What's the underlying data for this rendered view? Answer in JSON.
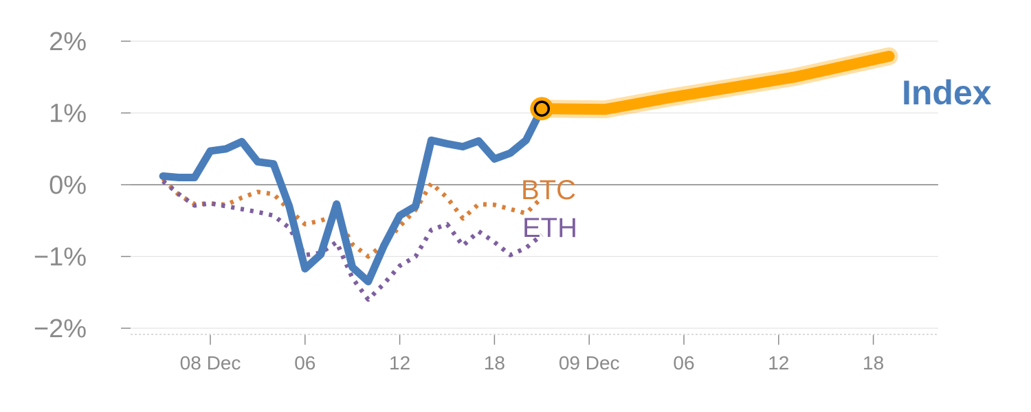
{
  "chart_data": {
    "type": "line",
    "y_unit": "%",
    "ylim": [
      -2,
      2
    ],
    "y_ticks": [
      {
        "value": 2,
        "label": "2%"
      },
      {
        "value": 1,
        "label": "1%"
      },
      {
        "value": 0,
        "label": "0%"
      },
      {
        "value": -1,
        "label": "−1%"
      },
      {
        "value": -2,
        "label": "−2%"
      }
    ],
    "x_tick_labels": [
      "08 Dec",
      "06",
      "12",
      "18",
      "09 Dec",
      "06",
      "12",
      "18"
    ],
    "grid": true,
    "series": [
      {
        "name": "Index",
        "color": "#4a7ebb",
        "style": "solid",
        "points": [
          [
            "12-07 21:00",
            0.12
          ],
          [
            "12-07 22:00",
            0.1
          ],
          [
            "12-07 23:00",
            0.1
          ],
          [
            "12-08 00:00",
            0.47
          ],
          [
            "12-08 01:00",
            0.5
          ],
          [
            "12-08 02:00",
            0.6
          ],
          [
            "12-08 03:00",
            0.32
          ],
          [
            "12-08 04:00",
            0.29
          ],
          [
            "12-08 05:00",
            -0.3
          ],
          [
            "12-08 06:00",
            -1.17
          ],
          [
            "12-08 07:00",
            -0.97
          ],
          [
            "12-08 08:00",
            -0.27
          ],
          [
            "12-08 09:00",
            -1.15
          ],
          [
            "12-08 10:00",
            -1.35
          ],
          [
            "12-08 11:00",
            -0.85
          ],
          [
            "12-08 12:00",
            -0.43
          ],
          [
            "12-08 13:00",
            -0.3
          ],
          [
            "12-08 14:00",
            0.62
          ],
          [
            "12-08 15:00",
            0.57
          ],
          [
            "12-08 16:00",
            0.53
          ],
          [
            "12-08 17:00",
            0.61
          ],
          [
            "12-08 18:00",
            0.36
          ],
          [
            "12-08 19:00",
            0.44
          ],
          [
            "12-08 20:00",
            0.62
          ],
          [
            "12-08 21:00",
            1.06
          ]
        ]
      },
      {
        "name": "BTC",
        "color": "#d9803a",
        "style": "dotted",
        "points": [
          [
            "12-07 21:00",
            0.08
          ],
          [
            "12-07 22:00",
            -0.14
          ],
          [
            "12-07 23:00",
            -0.27
          ],
          [
            "12-08 00:00",
            -0.26
          ],
          [
            "12-08 01:00",
            -0.28
          ],
          [
            "12-08 02:00",
            -0.18
          ],
          [
            "12-08 03:00",
            -0.1
          ],
          [
            "12-08 04:00",
            -0.13
          ],
          [
            "12-08 05:00",
            -0.35
          ],
          [
            "12-08 06:00",
            -0.55
          ],
          [
            "12-08 07:00",
            -0.5
          ],
          [
            "12-08 08:00",
            -0.42
          ],
          [
            "12-08 09:00",
            -0.83
          ],
          [
            "12-08 10:00",
            -1.0
          ],
          [
            "12-08 11:00",
            -0.83
          ],
          [
            "12-08 12:00",
            -0.58
          ],
          [
            "12-08 13:00",
            -0.35
          ],
          [
            "12-08 14:00",
            0.02
          ],
          [
            "12-08 15:00",
            -0.18
          ],
          [
            "12-08 16:00",
            -0.47
          ],
          [
            "12-08 17:00",
            -0.27
          ],
          [
            "12-08 18:00",
            -0.28
          ],
          [
            "12-08 19:00",
            -0.34
          ],
          [
            "12-08 20:00",
            -0.4
          ],
          [
            "12-08 21:00",
            -0.18
          ]
        ]
      },
      {
        "name": "ETH",
        "color": "#7d5fa0",
        "style": "dotted",
        "points": [
          [
            "12-07 21:00",
            0.05
          ],
          [
            "12-07 22:00",
            -0.13
          ],
          [
            "12-07 23:00",
            -0.29
          ],
          [
            "12-08 00:00",
            -0.26
          ],
          [
            "12-08 01:00",
            -0.3
          ],
          [
            "12-08 02:00",
            -0.34
          ],
          [
            "12-08 03:00",
            -0.38
          ],
          [
            "12-08 04:00",
            -0.43
          ],
          [
            "12-08 05:00",
            -0.6
          ],
          [
            "12-08 06:00",
            -0.98
          ],
          [
            "12-08 07:00",
            -0.95
          ],
          [
            "12-08 08:00",
            -0.8
          ],
          [
            "12-08 09:00",
            -1.3
          ],
          [
            "12-08 10:00",
            -1.6
          ],
          [
            "12-08 11:00",
            -1.38
          ],
          [
            "12-08 12:00",
            -1.13
          ],
          [
            "12-08 13:00",
            -1.0
          ],
          [
            "12-08 14:00",
            -0.63
          ],
          [
            "12-08 15:00",
            -0.55
          ],
          [
            "12-08 16:00",
            -0.85
          ],
          [
            "12-08 17:00",
            -0.65
          ],
          [
            "12-08 18:00",
            -0.8
          ],
          [
            "12-08 19:00",
            -0.98
          ],
          [
            "12-08 20:00",
            -0.88
          ],
          [
            "12-08 21:00",
            -0.7
          ]
        ]
      },
      {
        "name": "Index",
        "color": "#ffa500",
        "style": "thick-highlight",
        "points": [
          [
            "12-08 21:00",
            1.06
          ],
          [
            "12-09 01:00",
            1.05
          ],
          [
            "12-09 05:00",
            1.21
          ],
          [
            "12-09 13:00",
            1.5
          ],
          [
            "12-09 19:00",
            1.79
          ]
        ]
      }
    ],
    "current_marker": {
      "x": "12-08 21:00",
      "y": 1.06
    }
  },
  "labels": {
    "index": "Index",
    "btc": "BTC",
    "eth": "ETH"
  }
}
